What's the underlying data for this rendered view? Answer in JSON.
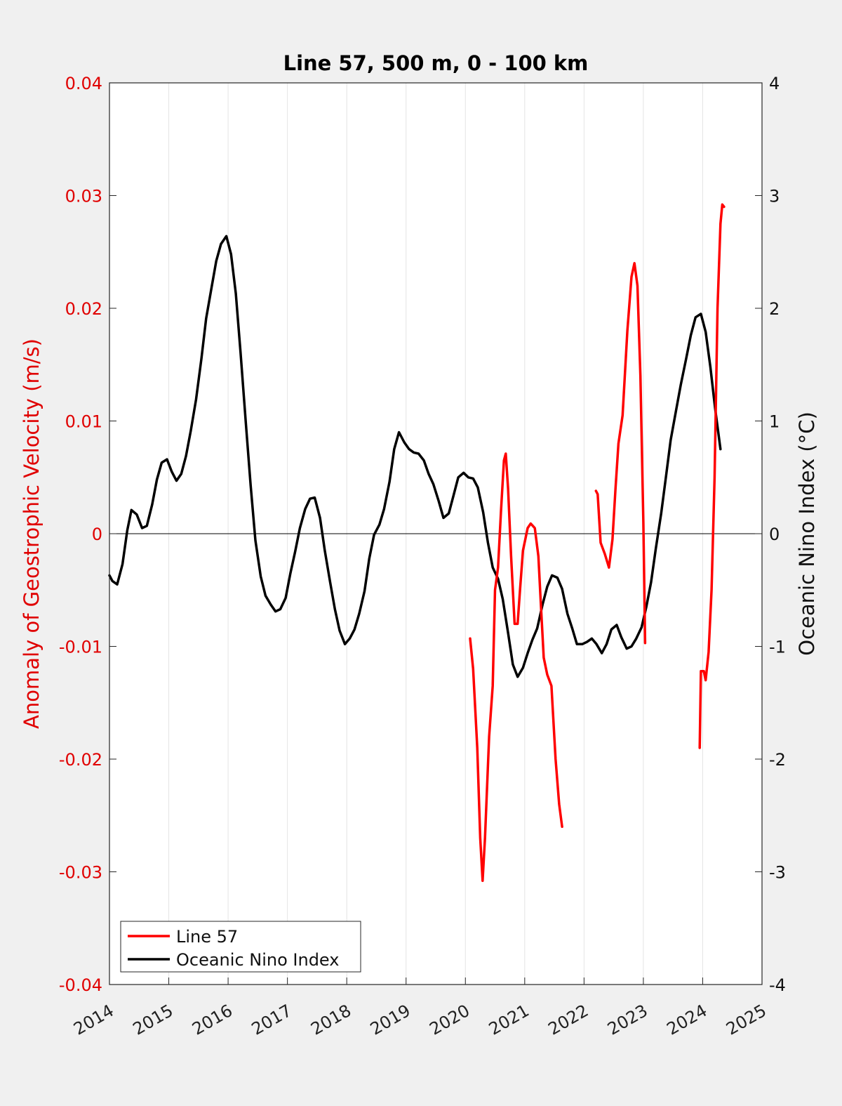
{
  "chart_data": {
    "type": "line",
    "title": "Line 57, 500 m, 0 - 100 km",
    "xlabel": "",
    "ylabel": "Anomaly of Geostrophic Velocity (m/s)",
    "ylabel_right": "Oceanic Nino Index (°C)",
    "xlim": [
      2014,
      2025
    ],
    "ylim": [
      -0.04,
      0.04
    ],
    "ylim_right": [
      -4,
      4
    ],
    "x_ticks": [
      "2014",
      "2015",
      "2016",
      "2017",
      "2018",
      "2019",
      "2020",
      "2021",
      "2022",
      "2023",
      "2024",
      "2025"
    ],
    "y_ticks_left": [
      "-0.04",
      "-0.03",
      "-0.02",
      "-0.01",
      "0",
      "0.01",
      "0.02",
      "0.03",
      "0.04"
    ],
    "y_ticks_right": [
      "-4",
      "-3",
      "-2",
      "-1",
      "0",
      "1",
      "2",
      "3",
      "4"
    ],
    "grid": "vertical",
    "zero_line": true,
    "legend_position": "bottom-left",
    "colors": {
      "line57": "#ff0000",
      "oni": "#000000",
      "left_axis": "#e00000"
    },
    "series": [
      {
        "name": "Line 57",
        "axis": "left",
        "segments": [
          [
            [
              2020.08,
              -0.0093
            ],
            [
              2020.13,
              -0.012
            ],
            [
              2020.2,
              -0.019
            ],
            [
              2020.25,
              -0.027
            ],
            [
              2020.29,
              -0.0308
            ],
            [
              2020.33,
              -0.027
            ],
            [
              2020.4,
              -0.018
            ],
            [
              2020.46,
              -0.0135
            ],
            [
              2020.5,
              -0.005
            ],
            [
              2020.55,
              -0.003
            ],
            [
              2020.6,
              0.002
            ],
            [
              2020.65,
              0.0065
            ],
            [
              2020.68,
              0.0071
            ],
            [
              2020.72,
              0.004
            ],
            [
              2020.77,
              -0.002
            ],
            [
              2020.83,
              -0.008
            ],
            [
              2020.88,
              -0.008
            ],
            [
              2020.92,
              -0.005
            ],
            [
              2020.97,
              -0.0015
            ],
            [
              2021.05,
              0.0005
            ],
            [
              2021.1,
              0.0009
            ],
            [
              2021.17,
              0.0005
            ],
            [
              2021.23,
              -0.002
            ],
            [
              2021.27,
              -0.006
            ],
            [
              2021.32,
              -0.011
            ],
            [
              2021.38,
              -0.0125
            ],
            [
              2021.45,
              -0.0135
            ],
            [
              2021.52,
              -0.02
            ],
            [
              2021.58,
              -0.024
            ],
            [
              2021.63,
              -0.026
            ]
          ],
          [
            [
              2022.2,
              0.0038
            ],
            [
              2022.23,
              0.0035
            ],
            [
              2022.28,
              -0.0008
            ],
            [
              2022.35,
              -0.0018
            ],
            [
              2022.42,
              -0.003
            ],
            [
              2022.48,
              -0.0005
            ],
            [
              2022.53,
              0.004
            ],
            [
              2022.58,
              0.008
            ],
            [
              2022.65,
              0.0105
            ],
            [
              2022.73,
              0.018
            ],
            [
              2022.8,
              0.0228
            ],
            [
              2022.85,
              0.024
            ],
            [
              2022.9,
              0.022
            ],
            [
              2022.95,
              0.014
            ],
            [
              2023.0,
              0.001
            ],
            [
              2023.03,
              -0.0097
            ]
          ],
          [
            [
              2023.95,
              -0.019
            ],
            [
              2023.97,
              -0.0122
            ],
            [
              2024.02,
              -0.0122
            ],
            [
              2024.05,
              -0.013
            ],
            [
              2024.1,
              -0.0105
            ],
            [
              2024.15,
              -0.005
            ],
            [
              2024.2,
              0.005
            ],
            [
              2024.25,
              0.02
            ],
            [
              2024.3,
              0.0275
            ],
            [
              2024.33,
              0.0292
            ],
            [
              2024.36,
              0.029
            ]
          ]
        ]
      },
      {
        "name": "Oceanic Nino Index",
        "axis": "right",
        "points": [
          [
            2014.0,
            -0.37
          ],
          [
            2014.05,
            -0.42
          ],
          [
            2014.13,
            -0.45
          ],
          [
            2014.22,
            -0.27
          ],
          [
            2014.3,
            0.03
          ],
          [
            2014.37,
            0.21
          ],
          [
            2014.46,
            0.17
          ],
          [
            2014.55,
            0.05
          ],
          [
            2014.63,
            0.07
          ],
          [
            2014.72,
            0.26
          ],
          [
            2014.8,
            0.48
          ],
          [
            2014.88,
            0.63
          ],
          [
            2014.97,
            0.66
          ],
          [
            2015.05,
            0.55
          ],
          [
            2015.13,
            0.47
          ],
          [
            2015.21,
            0.53
          ],
          [
            2015.29,
            0.69
          ],
          [
            2015.37,
            0.91
          ],
          [
            2015.46,
            1.19
          ],
          [
            2015.55,
            1.55
          ],
          [
            2015.63,
            1.91
          ],
          [
            2015.72,
            2.18
          ],
          [
            2015.8,
            2.42
          ],
          [
            2015.88,
            2.57
          ],
          [
            2015.97,
            2.64
          ],
          [
            2016.05,
            2.48
          ],
          [
            2016.13,
            2.13
          ],
          [
            2016.21,
            1.61
          ],
          [
            2016.3,
            0.97
          ],
          [
            2016.38,
            0.43
          ],
          [
            2016.46,
            -0.06
          ],
          [
            2016.55,
            -0.38
          ],
          [
            2016.63,
            -0.55
          ],
          [
            2016.72,
            -0.63
          ],
          [
            2016.8,
            -0.69
          ],
          [
            2016.88,
            -0.67
          ],
          [
            2016.97,
            -0.57
          ],
          [
            2017.05,
            -0.35
          ],
          [
            2017.13,
            -0.16
          ],
          [
            2017.21,
            0.05
          ],
          [
            2017.3,
            0.22
          ],
          [
            2017.38,
            0.31
          ],
          [
            2017.46,
            0.32
          ],
          [
            2017.55,
            0.14
          ],
          [
            2017.63,
            -0.15
          ],
          [
            2017.72,
            -0.43
          ],
          [
            2017.8,
            -0.67
          ],
          [
            2017.88,
            -0.86
          ],
          [
            2017.97,
            -0.98
          ],
          [
            2018.05,
            -0.93
          ],
          [
            2018.13,
            -0.85
          ],
          [
            2018.21,
            -0.71
          ],
          [
            2018.3,
            -0.51
          ],
          [
            2018.38,
            -0.22
          ],
          [
            2018.46,
            -0.01
          ],
          [
            2018.55,
            0.08
          ],
          [
            2018.63,
            0.22
          ],
          [
            2018.72,
            0.46
          ],
          [
            2018.8,
            0.75
          ],
          [
            2018.88,
            0.9
          ],
          [
            2018.97,
            0.81
          ],
          [
            2019.05,
            0.75
          ],
          [
            2019.13,
            0.72
          ],
          [
            2019.21,
            0.71
          ],
          [
            2019.3,
            0.65
          ],
          [
            2019.38,
            0.53
          ],
          [
            2019.46,
            0.44
          ],
          [
            2019.55,
            0.29
          ],
          [
            2019.63,
            0.14
          ],
          [
            2019.72,
            0.18
          ],
          [
            2019.8,
            0.34
          ],
          [
            2019.88,
            0.5
          ],
          [
            2019.97,
            0.54
          ],
          [
            2020.05,
            0.5
          ],
          [
            2020.13,
            0.49
          ],
          [
            2020.21,
            0.41
          ],
          [
            2020.3,
            0.19
          ],
          [
            2020.38,
            -0.08
          ],
          [
            2020.46,
            -0.3
          ],
          [
            2020.55,
            -0.4
          ],
          [
            2020.63,
            -0.58
          ],
          [
            2020.72,
            -0.88
          ],
          [
            2020.8,
            -1.16
          ],
          [
            2020.88,
            -1.27
          ],
          [
            2020.97,
            -1.19
          ],
          [
            2021.05,
            -1.06
          ],
          [
            2021.13,
            -0.94
          ],
          [
            2021.21,
            -0.84
          ],
          [
            2021.3,
            -0.63
          ],
          [
            2021.38,
            -0.47
          ],
          [
            2021.46,
            -0.37
          ],
          [
            2021.55,
            -0.39
          ],
          [
            2021.63,
            -0.49
          ],
          [
            2021.72,
            -0.71
          ],
          [
            2021.8,
            -0.84
          ],
          [
            2021.88,
            -0.98
          ],
          [
            2021.97,
            -0.98
          ],
          [
            2022.05,
            -0.96
          ],
          [
            2022.13,
            -0.93
          ],
          [
            2022.21,
            -0.98
          ],
          [
            2022.3,
            -1.06
          ],
          [
            2022.38,
            -0.98
          ],
          [
            2022.46,
            -0.85
          ],
          [
            2022.55,
            -0.81
          ],
          [
            2022.63,
            -0.92
          ],
          [
            2022.72,
            -1.02
          ],
          [
            2022.8,
            -1.0
          ],
          [
            2022.88,
            -0.93
          ],
          [
            2022.97,
            -0.83
          ],
          [
            2023.05,
            -0.65
          ],
          [
            2023.13,
            -0.43
          ],
          [
            2023.21,
            -0.13
          ],
          [
            2023.3,
            0.18
          ],
          [
            2023.38,
            0.5
          ],
          [
            2023.46,
            0.83
          ],
          [
            2023.55,
            1.09
          ],
          [
            2023.63,
            1.32
          ],
          [
            2023.72,
            1.55
          ],
          [
            2023.8,
            1.76
          ],
          [
            2023.88,
            1.92
          ],
          [
            2023.97,
            1.95
          ],
          [
            2024.05,
            1.79
          ],
          [
            2024.13,
            1.48
          ],
          [
            2024.21,
            1.11
          ],
          [
            2024.3,
            0.75
          ]
        ]
      }
    ]
  }
}
